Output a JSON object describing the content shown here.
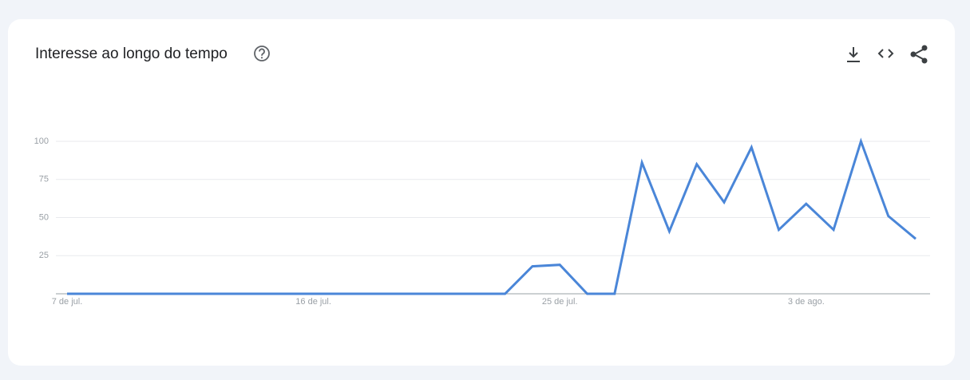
{
  "chart_data": {
    "type": "line",
    "title": "Interesse ao longo do tempo",
    "categories": [
      "7 de jul.",
      null,
      null,
      null,
      null,
      null,
      null,
      null,
      null,
      "16 de jul.",
      null,
      null,
      null,
      null,
      null,
      null,
      null,
      null,
      "25 de jul.",
      null,
      null,
      null,
      null,
      null,
      null,
      null,
      null,
      "3 de ago.",
      null,
      null,
      null,
      null
    ],
    "series": [
      {
        "name": "Interesse",
        "color": "#4a86d8",
        "values": [
          0,
          0,
          0,
          0,
          0,
          0,
          0,
          0,
          0,
          0,
          0,
          0,
          0,
          0,
          0,
          0,
          0,
          18,
          19,
          0,
          0,
          86,
          41,
          85,
          60,
          96,
          42,
          59,
          42,
          100,
          51,
          36
        ]
      }
    ],
    "ylim": [
      0,
      100
    ],
    "yticks": [
      25,
      50,
      75,
      100
    ],
    "grid": true
  }
}
